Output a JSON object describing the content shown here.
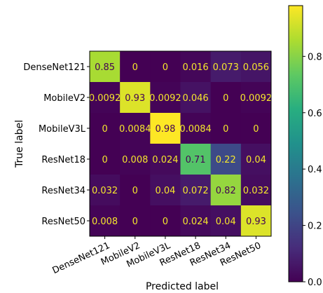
{
  "chart_data": {
    "type": "heatmap",
    "title": "",
    "xlabel": "Predicted label",
    "ylabel": "True label",
    "x_categories": [
      "DenseNet121",
      "MobileV2",
      "MobileV3L",
      "ResNet18",
      "ResNet34",
      "ResNet50"
    ],
    "y_categories": [
      "DenseNet121",
      "MobileV2",
      "MobileV3L",
      "ResNet18",
      "ResNet34",
      "ResNet50"
    ],
    "values": [
      [
        0.85,
        0,
        0,
        0.016,
        0.073,
        0.056
      ],
      [
        0.0092,
        0.93,
        0.0092,
        0.046,
        0,
        0.0092
      ],
      [
        0,
        0.0084,
        0.98,
        0.0084,
        0,
        0
      ],
      [
        0,
        0.008,
        0.024,
        0.71,
        0.22,
        0.04
      ],
      [
        0.032,
        0,
        0.04,
        0.072,
        0.82,
        0.032
      ],
      [
        0.008,
        0,
        0,
        0.024,
        0.04,
        0.93
      ]
    ],
    "cell_labels": [
      [
        "0.85",
        "0",
        "0",
        "0.016",
        "0.073",
        "0.056"
      ],
      [
        "0.0092",
        "0.93",
        "0.0092",
        "0.046",
        "0",
        "0.0092"
      ],
      [
        "0",
        "0.0084",
        "0.98",
        "0.0084",
        "0",
        "0"
      ],
      [
        "0",
        "0.008",
        "0.024",
        "0.71",
        "0.22",
        "0.04"
      ],
      [
        "0.032",
        "0",
        "0.04",
        "0.072",
        "0.82",
        "0.032"
      ],
      [
        "0.008",
        "0",
        "0",
        "0.024",
        "0.04",
        "0.93"
      ]
    ],
    "colormap": "viridis",
    "colorbar": {
      "range": [
        0,
        0.98
      ],
      "ticks": [
        0,
        0.2,
        0.4,
        0.6,
        0.8
      ],
      "tick_labels": [
        "0.0",
        "0.2",
        "0.4",
        "0.6",
        "0.8"
      ]
    },
    "colors": {
      "text_on_dark": "#f5e62c",
      "text_on_light": "#440154"
    }
  }
}
